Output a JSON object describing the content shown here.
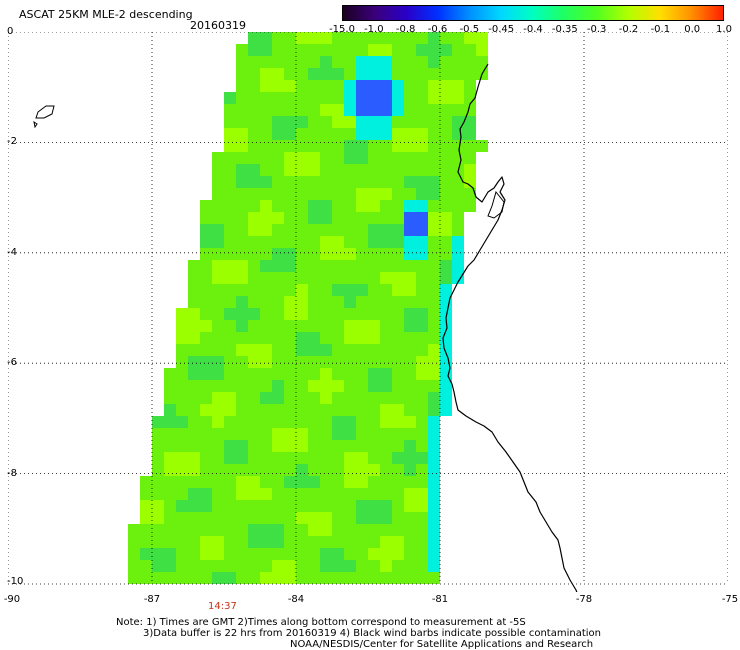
{
  "header": {
    "title": "ASCAT 25KM MLE-2 descending",
    "date": "20160319"
  },
  "colorbar": {
    "labels": [
      "-15.0",
      "-1.0",
      "-0.8",
      "-0.6",
      "-0.5",
      "-0.45",
      "-0.4",
      "-0.35",
      "-0.3",
      "-0.2",
      "-0.1",
      "0.0",
      "1.0"
    ],
    "colors": [
      "#1a0020",
      "#3a007a",
      "#2a00c8",
      "#0030ff",
      "#0090ff",
      "#00d8ff",
      "#00ffc0",
      "#20ff60",
      "#50ff20",
      "#b0ff00",
      "#ffe000",
      "#ff9000",
      "#ff2000"
    ]
  },
  "map": {
    "x_axis": {
      "range": [
        -90,
        -75
      ],
      "tick_labels": [
        "-90",
        "-87",
        "-84",
        "-81",
        "-78",
        "-75"
      ],
      "tick_values": [
        -90,
        -87,
        -84,
        -81,
        -78,
        -75
      ]
    },
    "y_axis": {
      "range": [
        -10,
        0
      ],
      "tick_labels": [
        "0",
        "-2",
        "-4",
        "-6",
        "-8",
        "-10"
      ],
      "tick_values": [
        0,
        -2,
        -4,
        -6,
        -8,
        -10
      ]
    },
    "grid": "dotted",
    "coastline_color": "#000000",
    "swath_colors": {
      "base": "#6cf00e",
      "light": "#9cff00",
      "dark": "#3ee044",
      "cyan": "#00f0e0",
      "blue": "#2a5cff"
    },
    "time_label": "14:37"
  },
  "notes": {
    "line1": "Note: 1) Times are GMT 2)Times along bottom correspond to measurement at -5S",
    "line2": "3)Data buffer is 22 hrs from 20160319 4) Black wind barbs indicate possible contamination",
    "line3": "NOAA/NESDIS/Center for Satellite Applications and Research"
  }
}
